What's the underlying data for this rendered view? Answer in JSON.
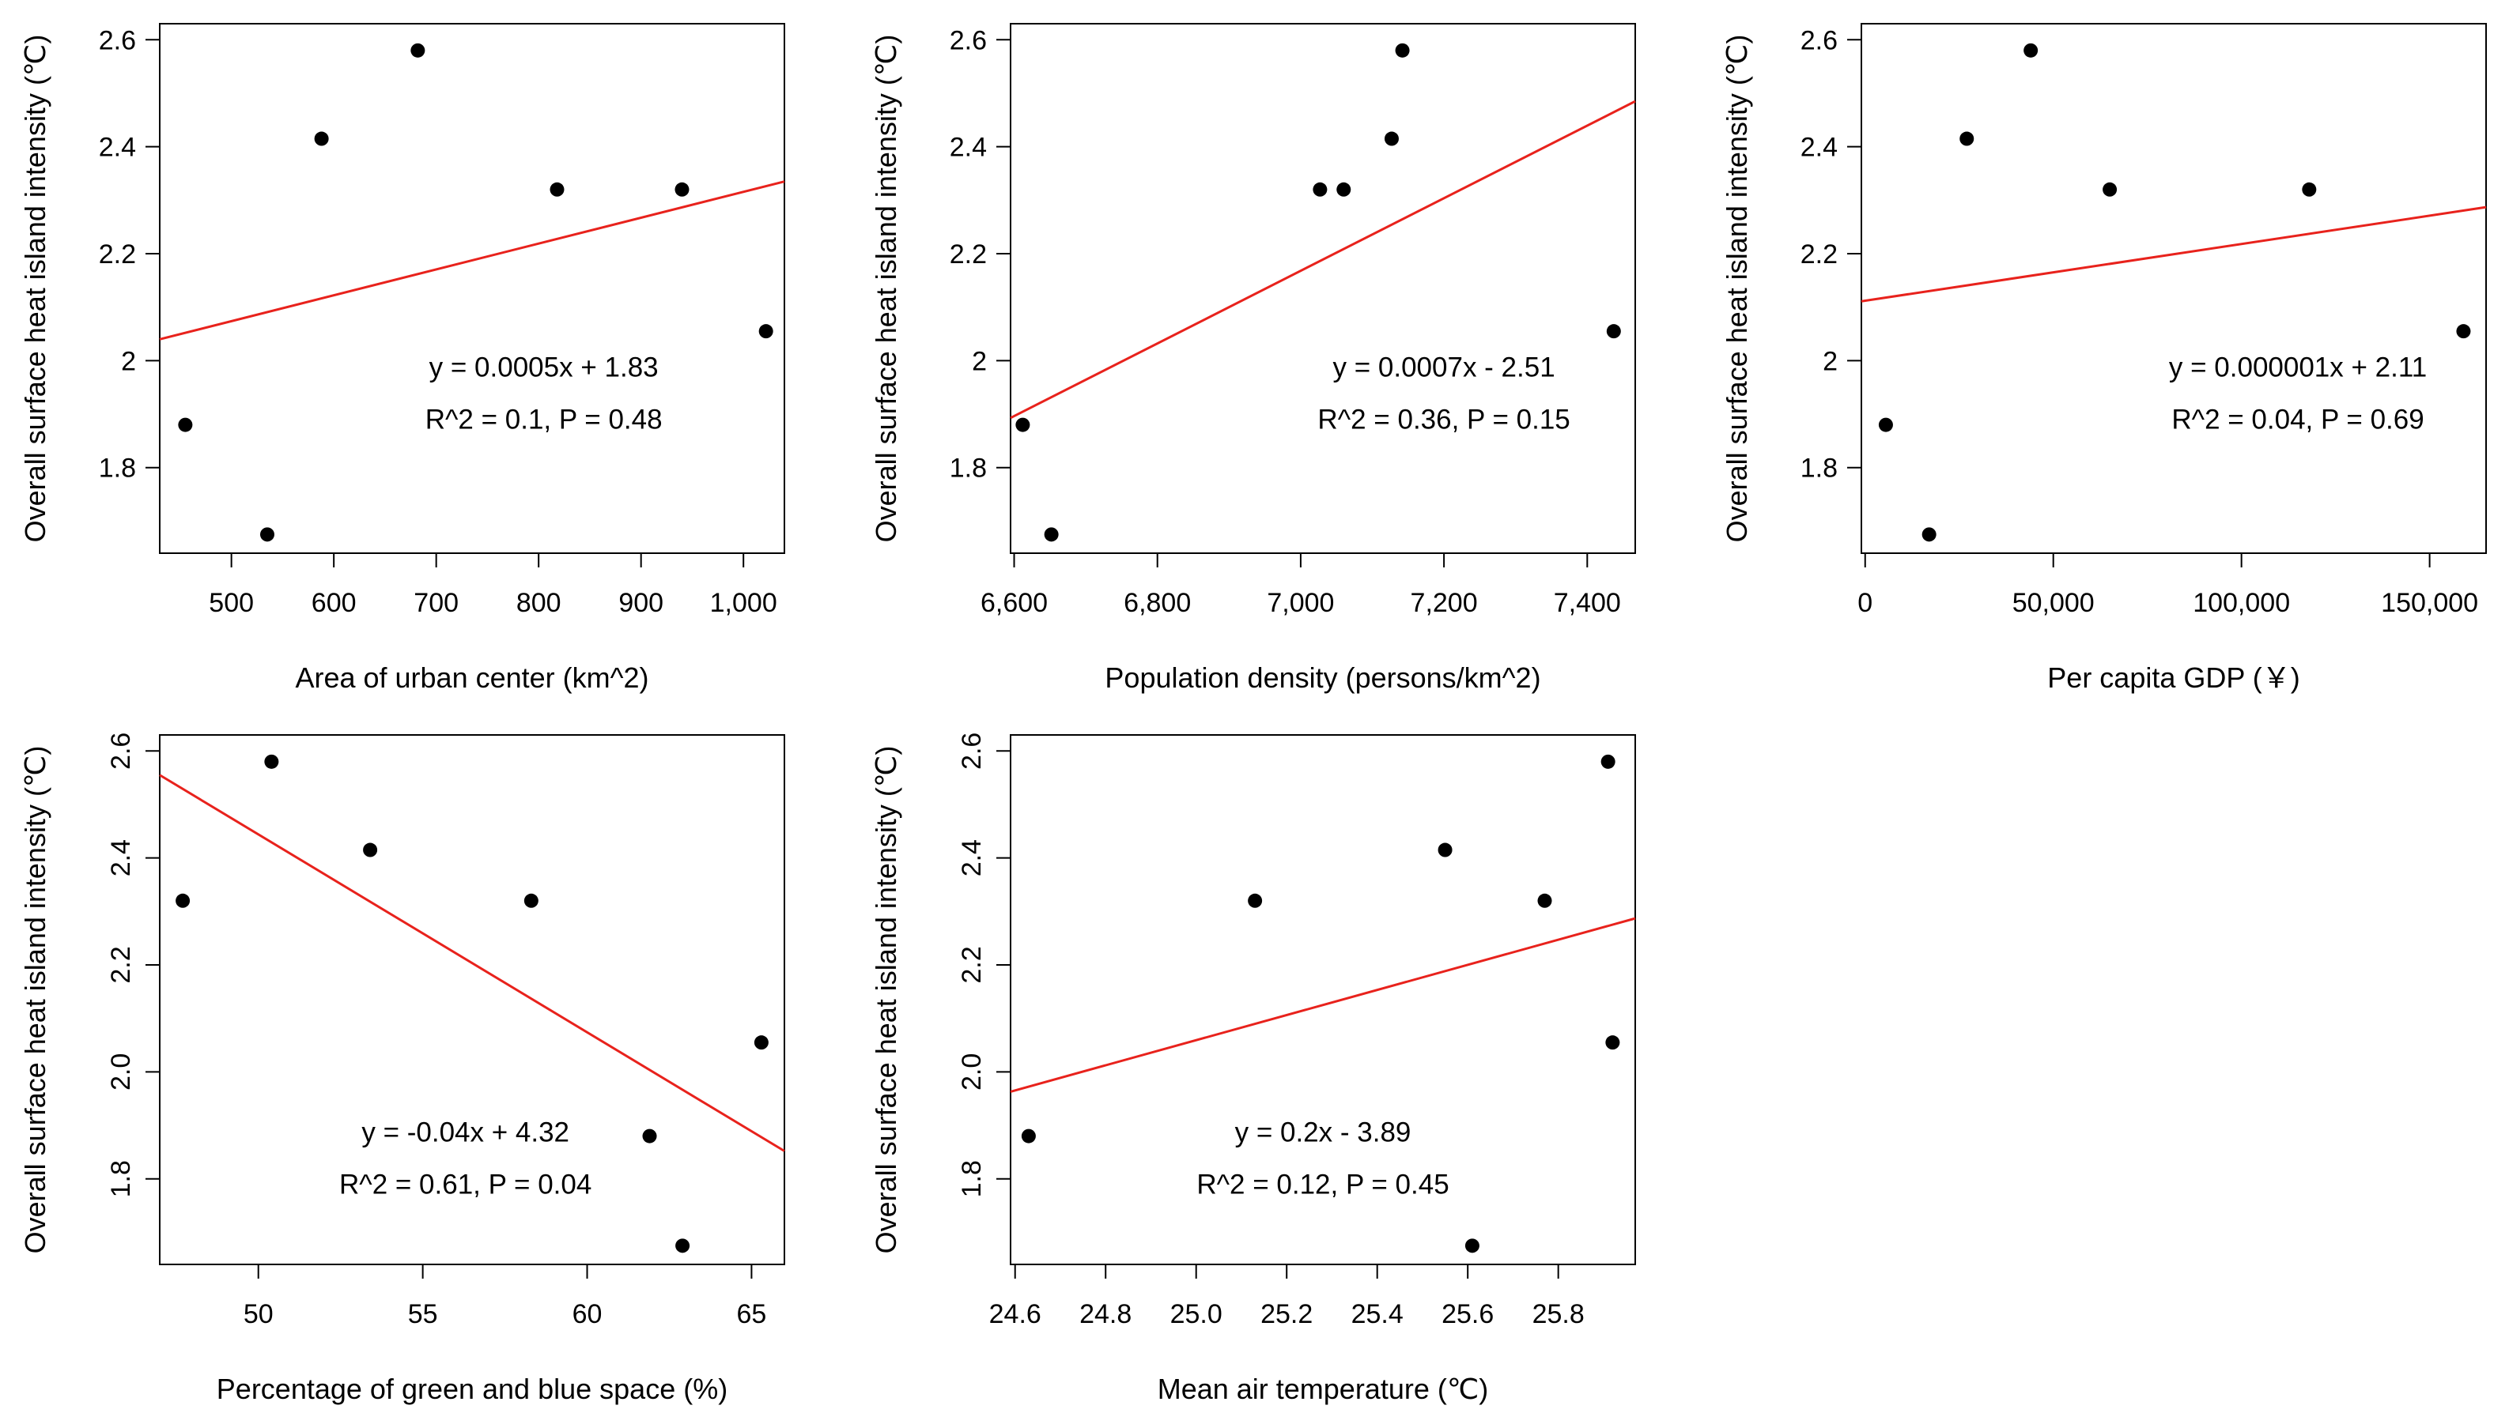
{
  "chart_data": [
    {
      "type": "scatter",
      "xlabel": "Area of urban center (km^2)",
      "ylabel": "Overall surface heat island intensity (℃)",
      "xlim": [
        430,
        1040
      ],
      "ylim": [
        1.64,
        2.63
      ],
      "xticks": [
        500,
        600,
        700,
        800,
        900,
        1000
      ],
      "xtick_labels": [
        "500",
        "600",
        "700",
        "800",
        "900",
        "1,000"
      ],
      "yticks": [
        1.8,
        2.0,
        2.2,
        2.4,
        2.6
      ],
      "ytick_labels": [
        "1.8",
        "2",
        "2.2",
        "2.4",
        "2.6"
      ],
      "ytick_orientation": "horizontal",
      "points": [
        {
          "x": 455,
          "y": 1.88
        },
        {
          "x": 535,
          "y": 1.675
        },
        {
          "x": 588,
          "y": 2.415
        },
        {
          "x": 682,
          "y": 2.58
        },
        {
          "x": 818,
          "y": 2.32
        },
        {
          "x": 940,
          "y": 2.32
        },
        {
          "x": 1022,
          "y": 2.055
        }
      ],
      "fit_line": {
        "color": "#e8221c",
        "x": [
          430,
          1040
        ],
        "y": [
          2.04,
          2.335
        ]
      },
      "equation": "y = 0.0005x + 1.83",
      "stats": "R^2 = 0.1, P = 0.48",
      "annotation_anchor": [
        805,
        1.97
      ]
    },
    {
      "type": "scatter",
      "xlabel": "Population density (persons/km^2)",
      "ylabel": "Overall surface heat island intensity (℃)",
      "xlim": [
        6595,
        7467
      ],
      "ylim": [
        1.64,
        2.63
      ],
      "xticks": [
        6600,
        6800,
        7000,
        7200,
        7400
      ],
      "xtick_labels": [
        "6,600",
        "6,800",
        "7,000",
        "7,200",
        "7,400"
      ],
      "yticks": [
        1.8,
        2.0,
        2.2,
        2.4,
        2.6
      ],
      "ytick_labels": [
        "1.8",
        "2",
        "2.2",
        "2.4",
        "2.6"
      ],
      "ytick_orientation": "horizontal",
      "points": [
        {
          "x": 6612,
          "y": 1.88
        },
        {
          "x": 6652,
          "y": 1.675
        },
        {
          "x": 7027,
          "y": 2.32
        },
        {
          "x": 7060,
          "y": 2.32
        },
        {
          "x": 7127,
          "y": 2.415
        },
        {
          "x": 7142,
          "y": 2.58
        },
        {
          "x": 7437,
          "y": 2.055
        }
      ],
      "fit_line": {
        "color": "#e8221c",
        "x": [
          6595,
          7467
        ],
        "y": [
          1.893,
          2.485
        ]
      },
      "equation": "y = 0.0007x - 2.51",
      "stats": "R^2 = 0.36, P = 0.15",
      "annotation_anchor": [
        7200,
        1.97
      ]
    },
    {
      "type": "scatter",
      "xlabel": "Per capita GDP (￥)",
      "ylabel": "Overall surface heat island intensity (℃)",
      "xlim": [
        -1000,
        165000
      ],
      "ylim": [
        1.64,
        2.63
      ],
      "xticks": [
        0,
        50000,
        100000,
        150000
      ],
      "xtick_labels": [
        "0",
        "50,000",
        "100,000",
        "150,000"
      ],
      "yticks": [
        1.8,
        2.0,
        2.2,
        2.4,
        2.6
      ],
      "ytick_labels": [
        "1.8",
        "2",
        "2.2",
        "2.4",
        "2.6"
      ],
      "ytick_orientation": "horizontal",
      "points": [
        {
          "x": 5500,
          "y": 1.88
        },
        {
          "x": 17000,
          "y": 1.675
        },
        {
          "x": 27000,
          "y": 2.415
        },
        {
          "x": 44000,
          "y": 2.58
        },
        {
          "x": 65000,
          "y": 2.32
        },
        {
          "x": 118000,
          "y": 2.32
        },
        {
          "x": 159000,
          "y": 2.055
        }
      ],
      "fit_line": {
        "color": "#e8221c",
        "x": [
          -1000,
          165000
        ],
        "y": [
          2.111,
          2.287
        ]
      },
      "equation": "y = 0.000001x + 2.11",
      "stats": "R^2 = 0.04, P = 0.69",
      "annotation_anchor": [
        115000,
        1.97
      ]
    },
    {
      "type": "scatter",
      "xlabel": "Percentage of green and blue space (%)",
      "ylabel": "Overall surface heat island intensity (℃)",
      "xlim": [
        47.0,
        66.0
      ],
      "ylim": [
        1.64,
        2.63
      ],
      "xticks": [
        50,
        55,
        60,
        65
      ],
      "xtick_labels": [
        "50",
        "55",
        "60",
        "65"
      ],
      "yticks": [
        1.8,
        2.0,
        2.2,
        2.4,
        2.6
      ],
      "ytick_labels": [
        "1.8",
        "2.0",
        "2.2",
        "2.4",
        "2.6"
      ],
      "ytick_orientation": "vertical",
      "points": [
        {
          "x": 47.7,
          "y": 2.32
        },
        {
          "x": 50.4,
          "y": 2.58
        },
        {
          "x": 53.4,
          "y": 2.415
        },
        {
          "x": 58.3,
          "y": 2.32
        },
        {
          "x": 61.9,
          "y": 1.88
        },
        {
          "x": 62.9,
          "y": 1.675
        },
        {
          "x": 65.3,
          "y": 2.055
        }
      ],
      "fit_line": {
        "color": "#e8221c",
        "x": [
          47.0,
          66.0
        ],
        "y": [
          2.555,
          1.852
        ]
      },
      "equation": "y = -0.04x + 4.32",
      "stats": "R^2 = 0.61, P = 0.04",
      "annotation_anchor": [
        56.3,
        1.87
      ]
    },
    {
      "type": "scatter",
      "xlabel": "Mean air temperature (℃)",
      "ylabel": "Overall surface heat island intensity (℃)",
      "xlim": [
        24.59,
        25.97
      ],
      "ylim": [
        1.64,
        2.63
      ],
      "xticks": [
        24.6,
        24.8,
        25.0,
        25.2,
        25.4,
        25.6,
        25.8
      ],
      "xtick_labels": [
        "24.6",
        "24.8",
        "25.0",
        "25.2",
        "25.4",
        "25.6",
        "25.8"
      ],
      "yticks": [
        1.8,
        2.0,
        2.2,
        2.4,
        2.6
      ],
      "ytick_labels": [
        "1.8",
        "2.0",
        "2.2",
        "2.4",
        "2.6"
      ],
      "ytick_orientation": "vertical",
      "points": [
        {
          "x": 24.63,
          "y": 1.88
        },
        {
          "x": 25.13,
          "y": 2.32
        },
        {
          "x": 25.55,
          "y": 2.415
        },
        {
          "x": 25.61,
          "y": 1.675
        },
        {
          "x": 25.77,
          "y": 2.32
        },
        {
          "x": 25.91,
          "y": 2.58
        },
        {
          "x": 25.92,
          "y": 2.055
        }
      ],
      "fit_line": {
        "color": "#e8221c",
        "x": [
          24.59,
          25.97
        ],
        "y": [
          1.963,
          2.287
        ]
      },
      "equation": "y = 0.2x - 3.89",
      "stats": "R^2 = 0.12, P = 0.45",
      "annotation_anchor": [
        25.28,
        1.87
      ]
    }
  ]
}
